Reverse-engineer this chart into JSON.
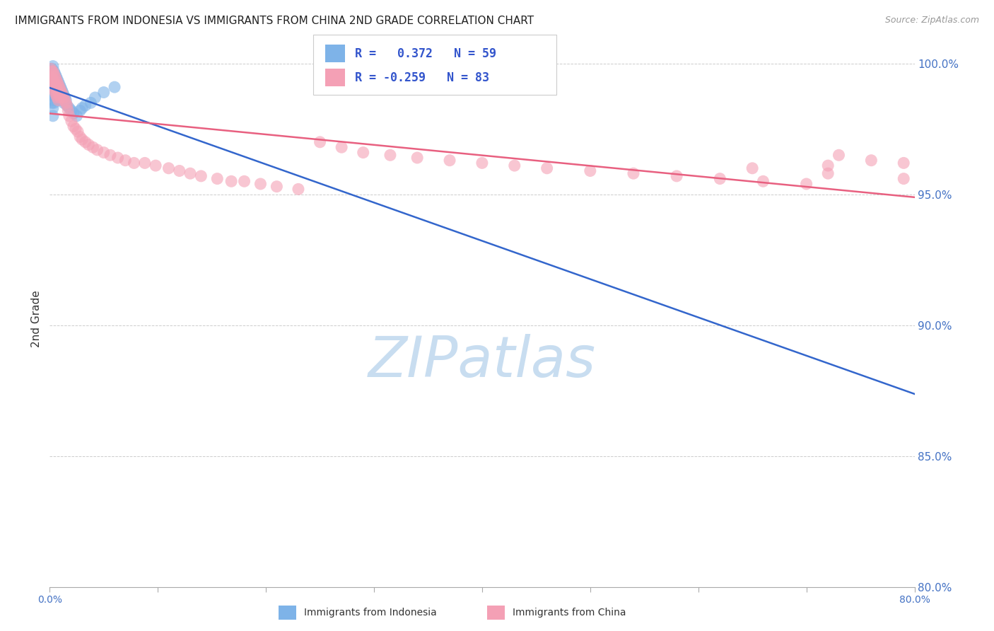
{
  "title": "IMMIGRANTS FROM INDONESIA VS IMMIGRANTS FROM CHINA 2ND GRADE CORRELATION CHART",
  "source": "Source: ZipAtlas.com",
  "ylabel": "2nd Grade",
  "xlim": [
    0.0,
    0.8
  ],
  "ylim": [
    0.8,
    1.005
  ],
  "x_ticks": [
    0.0,
    0.1,
    0.2,
    0.3,
    0.4,
    0.5,
    0.6,
    0.7,
    0.8
  ],
  "x_tick_labels_visible": [
    "0.0%",
    "",
    "",
    "",
    "",
    "",
    "",
    "",
    "80.0%"
  ],
  "y_ticks": [
    0.8,
    0.85,
    0.9,
    0.95,
    1.0
  ],
  "y_tick_labels": [
    "80.0%",
    "85.0%",
    "90.0%",
    "95.0%",
    "100.0%"
  ],
  "y_tick_color": "#4472c4",
  "x_tick_color": "#4472c4",
  "grid_color": "#cccccc",
  "background_color": "#ffffff",
  "watermark": "ZIPatlas",
  "watermark_color": "#c8ddf0",
  "legend_R1": "0.372",
  "legend_N1": "59",
  "legend_R2": "-0.259",
  "legend_N2": "83",
  "indonesia_color": "#7eb3e8",
  "china_color": "#f4a0b5",
  "indonesia_line_color": "#3366cc",
  "china_line_color": "#e86080",
  "legend_label1": "Immigrants from Indonesia",
  "legend_label2": "Immigrants from China",
  "indonesia_x": [
    0.001,
    0.001,
    0.001,
    0.002,
    0.002,
    0.002,
    0.002,
    0.002,
    0.002,
    0.003,
    0.003,
    0.003,
    0.003,
    0.003,
    0.003,
    0.003,
    0.003,
    0.004,
    0.004,
    0.004,
    0.004,
    0.004,
    0.005,
    0.005,
    0.005,
    0.005,
    0.006,
    0.006,
    0.006,
    0.007,
    0.007,
    0.007,
    0.008,
    0.008,
    0.008,
    0.009,
    0.009,
    0.009,
    0.01,
    0.01,
    0.011,
    0.011,
    0.012,
    0.013,
    0.013,
    0.014,
    0.015,
    0.016,
    0.018,
    0.02,
    0.022,
    0.025,
    0.028,
    0.03,
    0.033,
    0.038,
    0.042,
    0.05,
    0.06
  ],
  "indonesia_y": [
    0.997,
    0.994,
    0.991,
    0.998,
    0.996,
    0.993,
    0.99,
    0.988,
    0.985,
    0.999,
    0.996,
    0.994,
    0.991,
    0.988,
    0.986,
    0.983,
    0.98,
    0.997,
    0.994,
    0.991,
    0.988,
    0.985,
    0.996,
    0.993,
    0.99,
    0.987,
    0.995,
    0.992,
    0.989,
    0.994,
    0.991,
    0.988,
    0.993,
    0.99,
    0.987,
    0.992,
    0.989,
    0.986,
    0.991,
    0.988,
    0.99,
    0.987,
    0.989,
    0.988,
    0.985,
    0.987,
    0.986,
    0.984,
    0.983,
    0.982,
    0.981,
    0.98,
    0.982,
    0.983,
    0.984,
    0.985,
    0.987,
    0.989,
    0.991
  ],
  "china_x": [
    0.001,
    0.001,
    0.002,
    0.002,
    0.003,
    0.003,
    0.003,
    0.004,
    0.004,
    0.004,
    0.005,
    0.005,
    0.005,
    0.006,
    0.006,
    0.006,
    0.007,
    0.007,
    0.007,
    0.008,
    0.008,
    0.008,
    0.009,
    0.009,
    0.01,
    0.01,
    0.011,
    0.012,
    0.013,
    0.014,
    0.015,
    0.016,
    0.017,
    0.018,
    0.02,
    0.022,
    0.024,
    0.026,
    0.028,
    0.03,
    0.033,
    0.036,
    0.04,
    0.044,
    0.05,
    0.056,
    0.063,
    0.07,
    0.078,
    0.088,
    0.098,
    0.11,
    0.12,
    0.13,
    0.14,
    0.155,
    0.168,
    0.18,
    0.195,
    0.21,
    0.23,
    0.25,
    0.27,
    0.29,
    0.315,
    0.34,
    0.37,
    0.4,
    0.43,
    0.46,
    0.5,
    0.54,
    0.58,
    0.62,
    0.66,
    0.7,
    0.73,
    0.76,
    0.79,
    0.72,
    0.65,
    0.72,
    0.79
  ],
  "china_y": [
    0.998,
    0.995,
    0.997,
    0.994,
    0.997,
    0.994,
    0.991,
    0.996,
    0.993,
    0.99,
    0.995,
    0.992,
    0.989,
    0.994,
    0.991,
    0.988,
    0.993,
    0.99,
    0.987,
    0.992,
    0.989,
    0.986,
    0.991,
    0.988,
    0.99,
    0.987,
    0.989,
    0.988,
    0.987,
    0.986,
    0.985,
    0.984,
    0.982,
    0.98,
    0.978,
    0.976,
    0.975,
    0.974,
    0.972,
    0.971,
    0.97,
    0.969,
    0.968,
    0.967,
    0.966,
    0.965,
    0.964,
    0.963,
    0.962,
    0.962,
    0.961,
    0.96,
    0.959,
    0.958,
    0.957,
    0.956,
    0.955,
    0.955,
    0.954,
    0.953,
    0.952,
    0.97,
    0.968,
    0.966,
    0.965,
    0.964,
    0.963,
    0.962,
    0.961,
    0.96,
    0.959,
    0.958,
    0.957,
    0.956,
    0.955,
    0.954,
    0.965,
    0.963,
    0.962,
    0.961,
    0.96,
    0.958,
    0.956
  ]
}
